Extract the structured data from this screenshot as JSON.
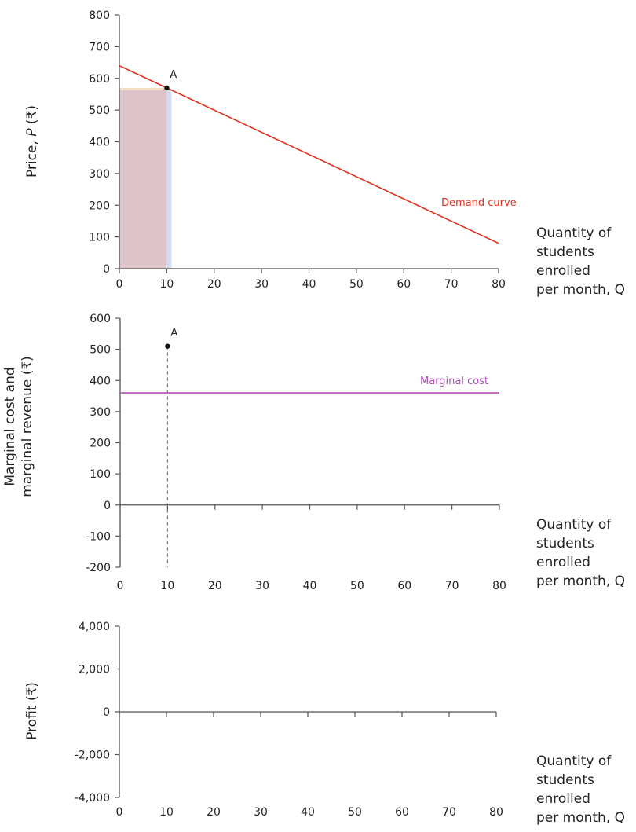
{
  "colors": {
    "demand": "#e0301e",
    "mc": "#b04fb4",
    "axis": "#555555",
    "revenue": "#dcc4c9",
    "gain": "#d3dcef",
    "loss": "#f3dcc2",
    "point": "#111111"
  },
  "chart_data": [
    {
      "type": "line",
      "title": "",
      "ylabel_parts": [
        "Price, ",
        "P",
        " (₹)"
      ],
      "xlabel_lines": [
        "Quantity of",
        "students",
        "enrolled",
        "per month, Q"
      ],
      "xlim": [
        0,
        80
      ],
      "ylim": [
        0,
        800
      ],
      "xticks": [
        0,
        10,
        20,
        30,
        40,
        50,
        60,
        70,
        80
      ],
      "yticks": [
        0,
        100,
        200,
        300,
        400,
        500,
        600,
        700,
        800
      ],
      "ytick_labels": [
        "0",
        "100",
        "200",
        "300",
        "400",
        "500",
        "600",
        "700",
        "800"
      ],
      "series": [
        {
          "name": "Demand curve",
          "x": [
            0,
            80
          ],
          "y": [
            640,
            80
          ]
        }
      ],
      "shaded_areas": [
        {
          "name": "revenue-common",
          "x": [
            0,
            10
          ],
          "y": [
            0,
            563
          ]
        },
        {
          "name": "revenue-lost",
          "x": [
            0,
            10
          ],
          "y": [
            563,
            570
          ]
        },
        {
          "name": "revenue-gained",
          "x": [
            10,
            11
          ],
          "y": [
            0,
            563
          ]
        }
      ],
      "points": [
        {
          "label": "A",
          "x": 10,
          "y": 570
        }
      ]
    },
    {
      "type": "line",
      "ylabel_lines": [
        "Marginal cost and",
        "marginal revenue (₹)"
      ],
      "xlabel_lines": [
        "Quantity of",
        "students",
        "enrolled",
        "per month, Q"
      ],
      "xlim": [
        0,
        80
      ],
      "ylim": [
        -200,
        600
      ],
      "xticks": [
        0,
        10,
        20,
        30,
        40,
        50,
        60,
        70,
        80
      ],
      "yticks": [
        -200,
        -100,
        0,
        100,
        200,
        300,
        400,
        500,
        600
      ],
      "ytick_labels": [
        "-200",
        "-100",
        "0",
        "100",
        "200",
        "300",
        "400",
        "500",
        "600"
      ],
      "series": [
        {
          "name": "Marginal cost",
          "x": [
            0,
            80
          ],
          "y": [
            360,
            360
          ]
        }
      ],
      "points": [
        {
          "label": "A",
          "x": 10,
          "y": 510
        }
      ]
    },
    {
      "type": "line",
      "ylabel": "Profit (₹)",
      "xlabel_lines": [
        "Quantity of",
        "students",
        "enrolled",
        "per month, Q"
      ],
      "xlim": [
        0,
        80
      ],
      "ylim": [
        -4000,
        4000
      ],
      "xticks": [
        0,
        10,
        20,
        30,
        40,
        50,
        60,
        70,
        80
      ],
      "yticks": [
        -4000,
        -2000,
        0,
        2000,
        4000
      ],
      "ytick_labels": [
        "-4,000",
        "-2,000",
        "0",
        "2,000",
        "4,000"
      ],
      "series": []
    }
  ]
}
